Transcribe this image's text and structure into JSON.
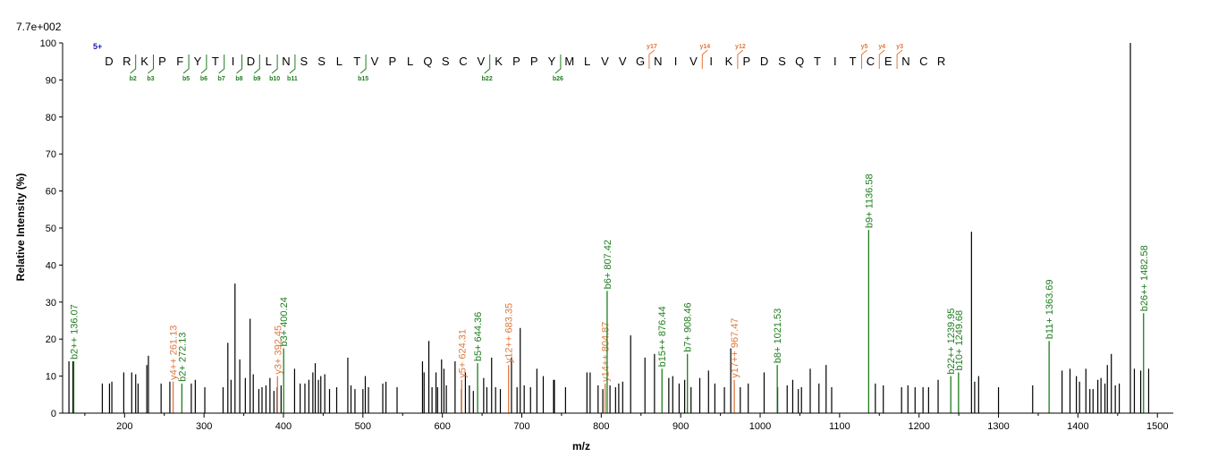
{
  "chart_data": {
    "type": "bar",
    "title": "",
    "scale_label": "7.7e+002",
    "xlabel": "m/z",
    "ylabel": "Relative   Intensity (%)",
    "xlim": [
      122,
      1520
    ],
    "ylim": [
      0,
      100
    ],
    "xticks": [
      "200",
      "300",
      "400",
      "500",
      "600",
      "700",
      "800",
      "900",
      "1000",
      "1100",
      "1200",
      "1300",
      "1400",
      "1500"
    ],
    "yticks": [
      "0",
      "10",
      "20",
      "30",
      "40",
      "50",
      "60",
      "70",
      "80",
      "90",
      "100"
    ],
    "colors": {
      "unmatched": "#000000",
      "b_ion": "#1e7d1e",
      "y_ion": "#e0783c",
      "charge": "#1a1ab8"
    },
    "peaks": [
      [
        130,
        14
      ],
      [
        135,
        14
      ],
      [
        172,
        8
      ],
      [
        181,
        8
      ],
      [
        184,
        8.5
      ],
      [
        199,
        11
      ],
      [
        209,
        11
      ],
      [
        214,
        10.5
      ],
      [
        217,
        8
      ],
      [
        228,
        13
      ],
      [
        230,
        15.5
      ],
      [
        246,
        8
      ],
      [
        257,
        8.5
      ],
      [
        284,
        8
      ],
      [
        289,
        9
      ],
      [
        301,
        7
      ],
      [
        324,
        7
      ],
      [
        330,
        19
      ],
      [
        334,
        9
      ],
      [
        339,
        35
      ],
      [
        345,
        14.5
      ],
      [
        352,
        9.5
      ],
      [
        358,
        25.5
      ],
      [
        362,
        10.5
      ],
      [
        369,
        6.5
      ],
      [
        373,
        7
      ],
      [
        378,
        7.5
      ],
      [
        383,
        9.5
      ],
      [
        388,
        6
      ],
      [
        392,
        7
      ],
      [
        397,
        7.5
      ],
      [
        414,
        12
      ],
      [
        421,
        8
      ],
      [
        427,
        8
      ],
      [
        432,
        9
      ],
      [
        437,
        11
      ],
      [
        440,
        13.5
      ],
      [
        444,
        9
      ],
      [
        447,
        10
      ],
      [
        452,
        10.5
      ],
      [
        458,
        6.5
      ],
      [
        467,
        7
      ],
      [
        481,
        15
      ],
      [
        485,
        7.5
      ],
      [
        490,
        6.5
      ],
      [
        500,
        6.5
      ],
      [
        503,
        10
      ],
      [
        507,
        7
      ],
      [
        525,
        8
      ],
      [
        529,
        8.5
      ],
      [
        543,
        7
      ],
      [
        575,
        14
      ],
      [
        577,
        11
      ],
      [
        583,
        19.5
      ],
      [
        587,
        7
      ],
      [
        592,
        11
      ],
      [
        594,
        7
      ],
      [
        599,
        14.5
      ],
      [
        602,
        12
      ],
      [
        605,
        7.5
      ],
      [
        616,
        14
      ],
      [
        624,
        6.5
      ],
      [
        629,
        11
      ],
      [
        634,
        7.5
      ],
      [
        639,
        6
      ],
      [
        652,
        9.5
      ],
      [
        656,
        7
      ],
      [
        662,
        15
      ],
      [
        667,
        7
      ],
      [
        673,
        6.5
      ],
      [
        687,
        15
      ],
      [
        694,
        7
      ],
      [
        698,
        23
      ],
      [
        703,
        7.5
      ],
      [
        711,
        7
      ],
      [
        719,
        12
      ],
      [
        727,
        10
      ],
      [
        740,
        9
      ],
      [
        741,
        9
      ],
      [
        755,
        7
      ],
      [
        782,
        11
      ],
      [
        786,
        11
      ],
      [
        796,
        7.5
      ],
      [
        802,
        6.5
      ],
      [
        811,
        7.5
      ],
      [
        818,
        7
      ],
      [
        822,
        8
      ],
      [
        827,
        8.5
      ],
      [
        837,
        21
      ],
      [
        855,
        15
      ],
      [
        867,
        16
      ],
      [
        885,
        9.5
      ],
      [
        890,
        10
      ],
      [
        898,
        8
      ],
      [
        905,
        9
      ],
      [
        913,
        7
      ],
      [
        924,
        9.5
      ],
      [
        935,
        11.5
      ],
      [
        943,
        8
      ],
      [
        955,
        7
      ],
      [
        963,
        17.5
      ],
      [
        975,
        7
      ],
      [
        985,
        8
      ],
      [
        1005,
        11
      ],
      [
        1022,
        7
      ],
      [
        1034,
        7.5
      ],
      [
        1041,
        9
      ],
      [
        1048,
        6.5
      ],
      [
        1052,
        7
      ],
      [
        1063,
        12
      ],
      [
        1074,
        8
      ],
      [
        1083,
        13
      ],
      [
        1090,
        7
      ],
      [
        1145,
        8
      ],
      [
        1155,
        7.5
      ],
      [
        1178,
        7
      ],
      [
        1186,
        7.5
      ],
      [
        1195,
        7
      ],
      [
        1205,
        7
      ],
      [
        1212,
        7
      ],
      [
        1224,
        9
      ],
      [
        1266,
        49
      ],
      [
        1270,
        8.5
      ],
      [
        1275,
        10
      ],
      [
        1300,
        7
      ],
      [
        1343,
        7.5
      ],
      [
        1380,
        11.5
      ],
      [
        1390,
        12
      ],
      [
        1398,
        10
      ],
      [
        1402,
        8.5
      ],
      [
        1410,
        12
      ],
      [
        1415,
        6.5
      ],
      [
        1419,
        6.5
      ],
      [
        1425,
        9
      ],
      [
        1429,
        9.5
      ],
      [
        1434,
        8
      ],
      [
        1437,
        13
      ],
      [
        1442,
        16
      ],
      [
        1447,
        7.5
      ],
      [
        1452,
        8
      ],
      [
        1466,
        100
      ],
      [
        1471,
        12
      ],
      [
        1479,
        11.5
      ],
      [
        1489,
        12
      ]
    ],
    "annotations": [
      {
        "mz": 136.07,
        "h": 14,
        "ion": "b",
        "label": "b2++ 136.07"
      },
      {
        "mz": 261.13,
        "h": 8.5,
        "ion": "y",
        "label": "y4++ 261.13"
      },
      {
        "mz": 272.13,
        "h": 8,
        "ion": "b",
        "label": "b2+ 272.13"
      },
      {
        "mz": 392.45,
        "h": 10,
        "ion": "y",
        "label": "y3+ 392.45"
      },
      {
        "mz": 400.24,
        "h": 17.5,
        "ion": "b",
        "label": "b3+ 400.24"
      },
      {
        "mz": 624.31,
        "h": 9,
        "ion": "y",
        "label": "y5+ 624.31"
      },
      {
        "mz": 644.36,
        "h": 13.5,
        "ion": "b",
        "label": "b5+ 644.36"
      },
      {
        "mz": 683.35,
        "h": 13,
        "ion": "y",
        "label": "y12++ 683.35"
      },
      {
        "mz": 804.87,
        "h": 8,
        "ion": "y",
        "label": "y14++ 804.87"
      },
      {
        "mz": 807.42,
        "h": 33,
        "ion": "b",
        "label": "b6+ 807.42"
      },
      {
        "mz": 876.44,
        "h": 12,
        "ion": "b",
        "label": "b15++ 876.44"
      },
      {
        "mz": 908.46,
        "h": 16,
        "ion": "b",
        "label": "b7+ 908.46"
      },
      {
        "mz": 967.47,
        "h": 9,
        "ion": "y",
        "label": "y17++ 967.47"
      },
      {
        "mz": 1021.53,
        "h": 13,
        "ion": "b",
        "label": "b8+ 1021.53"
      },
      {
        "mz": 1136.58,
        "h": 49.5,
        "ion": "b",
        "label": "b9+ 1136.58"
      },
      {
        "mz": 1239.95,
        "h": 10,
        "ion": "b",
        "label": "b22++ 1239.95"
      },
      {
        "mz": 1249.68,
        "h": 11,
        "ion": "b",
        "label": "b10+ 1249.68"
      },
      {
        "mz": 1363.69,
        "h": 19.5,
        "ion": "b",
        "label": "b11+ 1363.69"
      },
      {
        "mz": 1482.58,
        "h": 27,
        "ion": "b",
        "label": "b26++ 1482.58"
      }
    ],
    "sequence": {
      "charge": "5+",
      "residues": [
        "D",
        "R",
        "K",
        "P",
        "F",
        "Y",
        "T",
        "I",
        "D",
        "L",
        "N",
        "S",
        "S",
        "L",
        "T",
        "V",
        "P",
        "L",
        "Q",
        "S",
        "C",
        "V",
        "K",
        "P",
        "P",
        "Y",
        "M",
        "L",
        "V",
        "V",
        "G",
        "N",
        "I",
        "V",
        "I",
        "K",
        "P",
        "D",
        "S",
        "Q",
        "T",
        "I",
        "T",
        "C",
        "E",
        "N",
        "C",
        "R"
      ],
      "b_fragments": [
        {
          "after": 2,
          "label": "b2"
        },
        {
          "after": 3,
          "label": "b3"
        },
        {
          "after": 5,
          "label": "b5"
        },
        {
          "after": 6,
          "label": "b6"
        },
        {
          "after": 7,
          "label": "b7"
        },
        {
          "after": 8,
          "label": "b8"
        },
        {
          "after": 9,
          "label": "b9"
        },
        {
          "after": 10,
          "label": "b10"
        },
        {
          "after": 11,
          "label": "b11"
        },
        {
          "after": 15,
          "label": "b15"
        },
        {
          "after": 22,
          "label": "b22"
        },
        {
          "after": 26,
          "label": "b26"
        }
      ],
      "y_fragments": [
        {
          "after": 31,
          "label": "y17"
        },
        {
          "after": 34,
          "label": "y14"
        },
        {
          "after": 36,
          "label": "y12"
        },
        {
          "after": 43,
          "label": "y5"
        },
        {
          "after": 44,
          "label": "y4"
        },
        {
          "after": 45,
          "label": "y3"
        }
      ]
    }
  }
}
